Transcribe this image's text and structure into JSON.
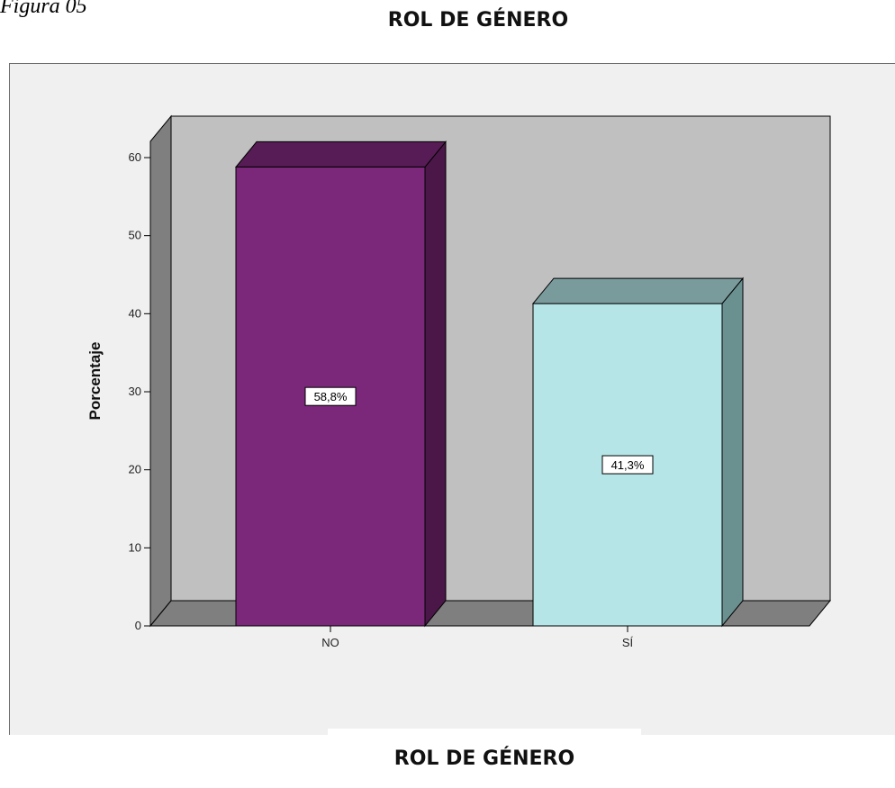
{
  "figure_label": "Figura 05",
  "chart_data": {
    "type": "bar",
    "title": "ROL DE GÉNERO",
    "categories": [
      "NO",
      "SÍ"
    ],
    "values": [
      58.8,
      41.3
    ],
    "data_labels": [
      "58,8%",
      "41,3%"
    ],
    "xlabel": "ROL DE GÉNERO",
    "ylabel": "Porcentaje",
    "ylim": [
      0,
      60
    ],
    "yticks": [
      0,
      10,
      20,
      30,
      40,
      50,
      60
    ],
    "grid": false,
    "legend": "none",
    "style": "3d",
    "colors": {
      "bars": [
        "#7b287b",
        "#b5e5e7"
      ],
      "bar_sides": [
        "#4a1748",
        "#6b9090"
      ],
      "bar_tops": [
        "#571c55",
        "#7a9b9c"
      ],
      "back_wall": "#c0c0c0",
      "side_wall": "#7f7f7f",
      "floor": "#7f7f7f",
      "frame_background": "#f0f0f0"
    }
  }
}
